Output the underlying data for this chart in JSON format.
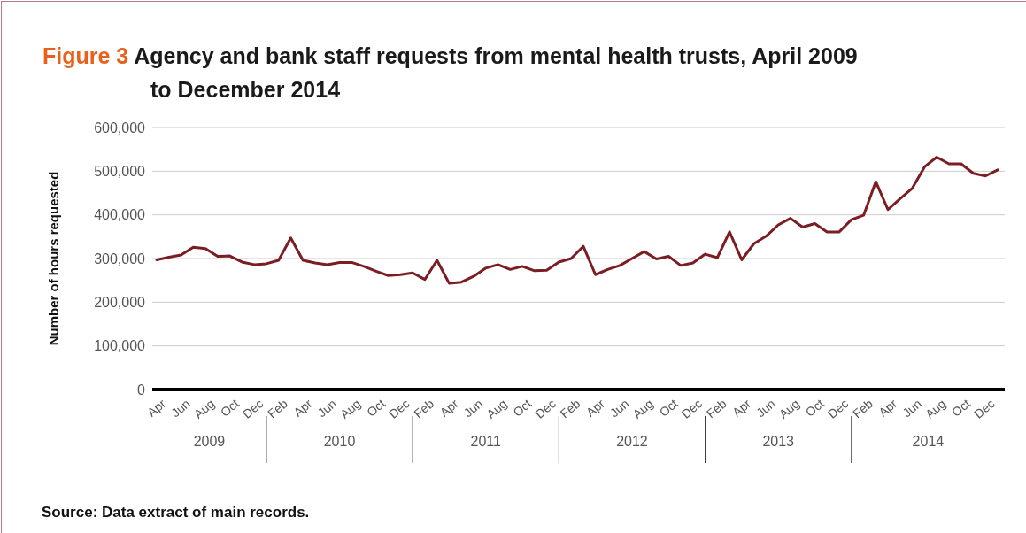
{
  "chart_data": {
    "type": "line",
    "title": "Agency and bank staff requests from mental health trusts, April 2009 to December 2014",
    "ylabel": "Number of hours requested",
    "categories": [
      "Apr",
      null,
      "Jun",
      null,
      "Aug",
      null,
      "Oct",
      null,
      "Dec",
      null,
      "Feb",
      null,
      "Apr",
      null,
      "Jun",
      null,
      "Aug",
      null,
      "Oct",
      null,
      "Dec",
      null,
      "Feb",
      null,
      "Apr",
      null,
      "Jun",
      null,
      "Aug",
      null,
      "Oct",
      null,
      "Dec",
      null,
      "Feb",
      null,
      "Apr",
      null,
      "Jun",
      null,
      "Aug",
      null,
      "Oct",
      null,
      "Dec",
      null,
      "Feb",
      null,
      "Apr",
      null,
      "Jun",
      null,
      "Aug",
      null,
      "Oct",
      null,
      "Dec",
      null,
      "Feb",
      null,
      "Apr",
      null,
      "Jun",
      null,
      "Aug",
      null,
      "Oct",
      null,
      "Dec",
      null
    ],
    "series": [
      {
        "color": "#7b1e24",
        "values": [
          297000,
          303000,
          308000,
          326000,
          323000,
          305000,
          306000,
          292000,
          286000,
          288000,
          296000,
          347000,
          296000,
          290000,
          286000,
          291000,
          291000,
          282000,
          271000,
          261000,
          263000,
          267000,
          252000,
          296000,
          243000,
          246000,
          259000,
          278000,
          286000,
          275000,
          282000,
          272000,
          273000,
          292000,
          300000,
          328000,
          263000,
          275000,
          284000,
          300000,
          316000,
          299000,
          305000,
          284000,
          290000,
          310000,
          302000,
          361000,
          297000,
          334000,
          351000,
          377000,
          392000,
          372000,
          380000,
          361000,
          361000,
          389000,
          399000,
          476000,
          412000,
          437000,
          461000,
          510000,
          532000,
          517000,
          517000,
          495000,
          489000,
          503000
        ]
      }
    ],
    "ylim": [
      0,
      600000
    ],
    "yticks": [
      {
        "value": 0,
        "label": "0"
      },
      {
        "value": 100000,
        "label": "100,000"
      },
      {
        "value": 200000,
        "label": "200,000"
      },
      {
        "value": 300000,
        "label": "300,000"
      },
      {
        "value": 400000,
        "label": "400,000"
      },
      {
        "value": 500000,
        "label": "500,000"
      },
      {
        "value": 600000,
        "label": "600,000"
      }
    ],
    "grid": "y",
    "marker": "none",
    "line_style": "solid",
    "annotations": [
      "Figure 3",
      "2009",
      "2010",
      "2011",
      "2012",
      "2013",
      "2014",
      "Source: Data extract of main records."
    ]
  }
}
